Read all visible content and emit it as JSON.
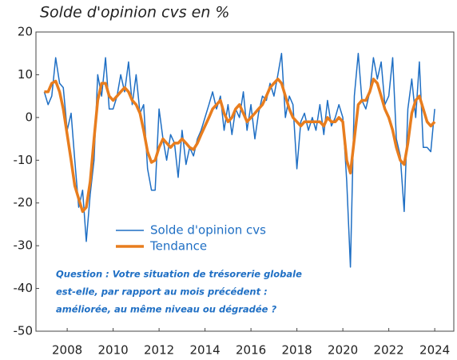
{
  "chart_data": {
    "type": "line",
    "title": "Solde d'opinion cvs en %",
    "annotation": [
      "Question : Votre situation de trésorerie globale",
      "est-elle, par rapport au mois précédent :",
      "améliorée, au même niveau ou dégradée ?"
    ],
    "x": [
      2007,
      2007.17,
      2007.33,
      2007.5,
      2007.67,
      2007.83,
      2008,
      2008.17,
      2008.33,
      2008.5,
      2008.67,
      2008.83,
      2009,
      2009.17,
      2009.33,
      2009.5,
      2009.67,
      2009.83,
      2010,
      2010.17,
      2010.33,
      2010.5,
      2010.67,
      2010.83,
      2011,
      2011.17,
      2011.33,
      2011.5,
      2011.67,
      2011.83,
      2012,
      2012.17,
      2012.33,
      2012.5,
      2012.67,
      2012.83,
      2013,
      2013.17,
      2013.33,
      2013.5,
      2013.67,
      2013.83,
      2014,
      2014.17,
      2014.33,
      2014.5,
      2014.67,
      2014.83,
      2015,
      2015.17,
      2015.33,
      2015.5,
      2015.67,
      2015.83,
      2016,
      2016.17,
      2016.33,
      2016.5,
      2016.67,
      2016.83,
      2017,
      2017.17,
      2017.33,
      2017.5,
      2017.67,
      2017.83,
      2018,
      2018.17,
      2018.33,
      2018.5,
      2018.67,
      2018.83,
      2019,
      2019.17,
      2019.33,
      2019.5,
      2019.67,
      2019.83,
      2020,
      2020.17,
      2020.33,
      2020.5,
      2020.67,
      2020.83,
      2021,
      2021.17,
      2021.33,
      2021.5,
      2021.67,
      2021.83,
      2022,
      2022.17,
      2022.33,
      2022.5,
      2022.67,
      2022.83,
      2023,
      2023.17,
      2023.33,
      2023.5,
      2023.67,
      2023.83,
      2024
    ],
    "series": [
      {
        "name": "Solde d'opinion cvs",
        "color": "#1f6fc4",
        "width": 1.5,
        "values": [
          6,
          3,
          5,
          14,
          8,
          7,
          -3,
          1,
          -10,
          -21,
          -17,
          -29,
          -18,
          -10,
          10,
          5,
          14,
          2,
          2,
          5,
          10,
          6,
          13,
          3,
          10,
          1,
          3,
          -12,
          -17,
          -17,
          2,
          -5,
          -10,
          -4,
          -6,
          -14,
          -3,
          -11,
          -7,
          -9,
          -5,
          -3,
          0,
          3,
          6,
          2,
          5,
          -3,
          3,
          -4,
          2,
          0,
          6,
          -3,
          3,
          -5,
          1,
          5,
          4,
          8,
          5,
          10,
          15,
          0,
          5,
          3,
          -12,
          -1,
          1,
          -3,
          0,
          -3,
          3,
          -4,
          4,
          -2,
          0,
          3,
          0,
          -15,
          -35,
          5,
          15,
          4,
          2,
          6,
          14,
          9,
          13,
          3,
          5,
          14,
          -5,
          -9,
          -22,
          2,
          9,
          0,
          13,
          -7,
          -7,
          -8,
          2
        ]
      },
      {
        "name": "Tendance",
        "color": "#e87d1e",
        "width": 3.5,
        "values": [
          6,
          6,
          8,
          8.5,
          6,
          2,
          -4,
          -10,
          -16,
          -19,
          -22,
          -21,
          -15,
          -5,
          4,
          8,
          8,
          5,
          4,
          5,
          6,
          7,
          6,
          4,
          3,
          1,
          -3,
          -8,
          -10.5,
          -10,
          -7,
          -5,
          -6,
          -7,
          -6,
          -6,
          -5,
          -6,
          -7,
          -7.5,
          -6,
          -4,
          -2,
          0,
          2,
          3,
          4,
          1,
          -1,
          0,
          2,
          3,
          1,
          -1,
          0,
          1,
          2,
          3,
          5,
          7,
          8,
          9,
          8,
          5,
          2,
          0,
          -1,
          -2,
          -1,
          -1,
          -1,
          -1,
          -1,
          -2,
          0,
          -1,
          -1,
          0,
          -1,
          -10,
          -13,
          -5,
          3,
          4,
          4,
          6,
          9,
          8,
          5,
          2,
          0,
          -3,
          -7,
          -10,
          -11,
          -6,
          1,
          4,
          5,
          2,
          -1,
          -2,
          -1
        ]
      }
    ],
    "xlim": [
      2006.64,
      2024.83
    ],
    "xticks": [
      2008,
      2010,
      2012,
      2014,
      2016,
      2018,
      2020,
      2022,
      2024
    ],
    "ylim": [
      -50,
      20
    ],
    "yticks": [
      -50,
      -40,
      -30,
      -20,
      -10,
      0,
      10,
      20
    ]
  }
}
